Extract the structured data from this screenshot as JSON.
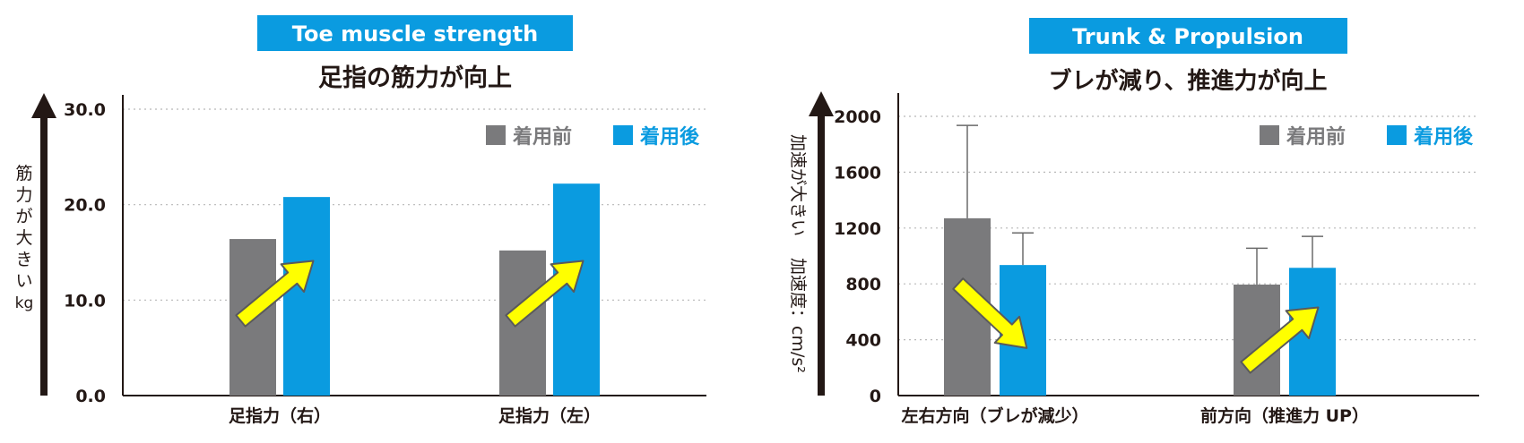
{
  "colors": {
    "badge": "#0a9be0",
    "before": "#7a7a7c",
    "after": "#0a9be0",
    "arrow_fill": "#ffff00",
    "arrow_stroke": "#5a5a5a",
    "text": "#231815"
  },
  "chart_data": [
    {
      "type": "bar",
      "badge": "Toe muscle strength",
      "title": "足指の筋力が向上",
      "ylabel_lines": [
        "筋",
        "力",
        "が",
        "大",
        "き",
        "い",
        "kg"
      ],
      "ylim": [
        0,
        30
      ],
      "yticks": [
        0,
        10,
        20,
        30
      ],
      "ytick_labels": [
        "0.0",
        "10.0",
        "20.0",
        "30.0"
      ],
      "grid": "horizontal-dotted",
      "legend_position": "top-right",
      "categories": [
        "足指力（右）",
        "足指力（左）"
      ],
      "series": [
        {
          "name": "着用前",
          "values": [
            16.4,
            15.2
          ]
        },
        {
          "name": "着用後",
          "values": [
            20.8,
            22.2
          ]
        }
      ],
      "annotations": [
        {
          "type": "arrow",
          "direction": "up",
          "category": 0
        },
        {
          "type": "arrow",
          "direction": "up",
          "category": 1
        }
      ]
    },
    {
      "type": "bar",
      "badge": "Trunk & Propulsion",
      "title": "ブレが減り、推進力が向上",
      "ylabel_lines": [
        "加速が大きい",
        "加速度：cm/s²"
      ],
      "ylim": [
        0,
        2000
      ],
      "yticks": [
        0,
        400,
        800,
        1200,
        1600,
        2000
      ],
      "ytick_labels": [
        "0",
        "400",
        "800",
        "1200",
        "1600",
        "2000"
      ],
      "grid": "horizontal-dotted",
      "legend_position": "top-right",
      "categories": [
        "左右方向（ブレが減少）",
        "前方向（推進力 UP）"
      ],
      "series": [
        {
          "name": "着用前",
          "values": [
            1270,
            795
          ],
          "error": [
            665,
            260
          ]
        },
        {
          "name": "着用後",
          "values": [
            935,
            915
          ],
          "error": [
            230,
            225
          ]
        }
      ],
      "annotations": [
        {
          "type": "arrow",
          "direction": "down",
          "category": 0
        },
        {
          "type": "arrow",
          "direction": "up",
          "category": 1
        }
      ]
    }
  ]
}
